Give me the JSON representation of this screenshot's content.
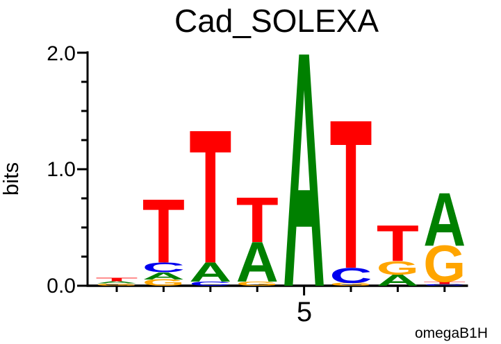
{
  "title": "Cad_SOLEXA",
  "y_axis": {
    "label": "bits",
    "ticks": [
      "2.0",
      "1.0",
      "0.0"
    ],
    "tick_values": [
      2.0,
      1.0,
      0.0
    ],
    "minor_tick_interval_bits": 0.25,
    "max_bits": 2.0,
    "min_bits": 0.0
  },
  "x_axis": {
    "num_positions": 8,
    "labeled_tick_position": 5,
    "labeled_tick_label": "5"
  },
  "footer": {
    "credit": "omegaB1H"
  },
  "colors": {
    "A": "#008000",
    "C": "#0000EE",
    "G": "#FFA500",
    "T": "#FF0000",
    "axis": "#000000",
    "text": "#000000"
  },
  "chart_data": {
    "type": "sequence-logo",
    "title": "Cad_SOLEXA",
    "ylabel": "bits",
    "ylim": [
      0,
      2.0
    ],
    "unit": "bits",
    "x_tick_labels": {
      "5": "5"
    },
    "positions": [
      {
        "position": 1,
        "letters": [
          {
            "base": "T",
            "bits": 0.03
          },
          {
            "base": "A",
            "bits": 0.02
          },
          {
            "base": "G",
            "bits": 0.02
          }
        ]
      },
      {
        "position": 2,
        "letters": [
          {
            "base": "T",
            "bits": 0.54
          },
          {
            "base": "C",
            "bits": 0.085
          },
          {
            "base": "A",
            "bits": 0.06
          },
          {
            "base": "G",
            "bits": 0.055
          }
        ]
      },
      {
        "position": 3,
        "letters": [
          {
            "base": "T",
            "bits": 1.13
          },
          {
            "base": "A",
            "bits": 0.165
          },
          {
            "base": "C",
            "bits": 0.035
          }
        ]
      },
      {
        "position": 4,
        "letters": [
          {
            "base": "T",
            "bits": 0.38
          },
          {
            "base": "A",
            "bits": 0.34
          },
          {
            "base": "G",
            "bits": 0.035
          }
        ]
      },
      {
        "position": 5,
        "letters": [
          {
            "base": "A",
            "bits": 1.99
          }
        ]
      },
      {
        "position": 6,
        "letters": [
          {
            "base": "T",
            "bits": 1.26
          },
          {
            "base": "C",
            "bits": 0.13
          },
          {
            "base": "G",
            "bits": 0.025
          }
        ]
      },
      {
        "position": 7,
        "letters": [
          {
            "base": "T",
            "bits": 0.305
          },
          {
            "base": "G",
            "bits": 0.115
          },
          {
            "base": "A",
            "bits": 0.095
          }
        ]
      },
      {
        "position": 8,
        "letters": [
          {
            "base": "A",
            "bits": 0.45
          },
          {
            "base": "G",
            "bits": 0.31
          },
          {
            "base": "T",
            "bits": 0.018
          },
          {
            "base": "C",
            "bits": 0.015
          }
        ]
      }
    ]
  }
}
